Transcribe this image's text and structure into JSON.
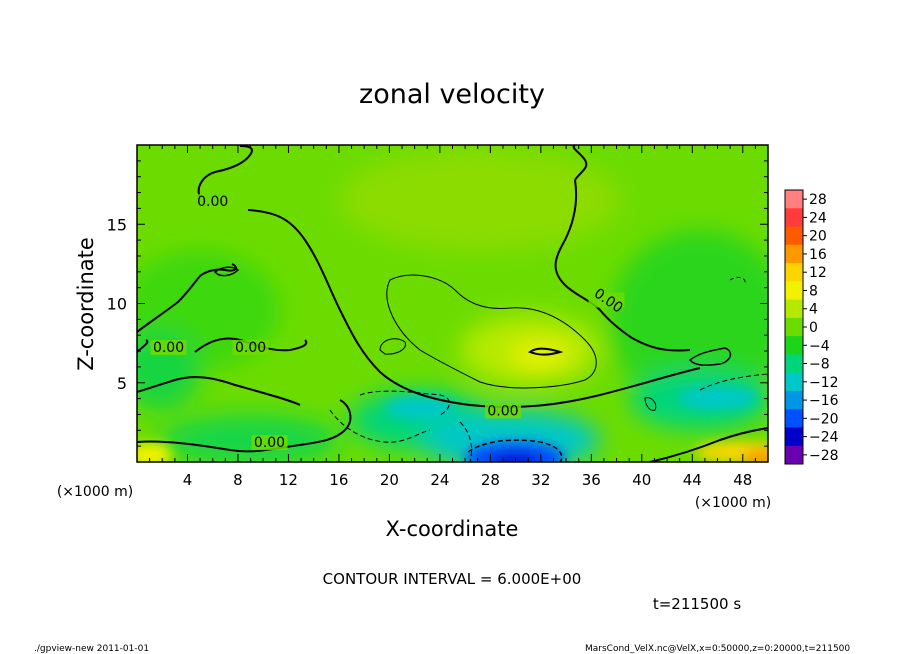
{
  "chart_data": {
    "type": "heatmap",
    "title": "zonal velocity",
    "xlabel": "X-coordinate",
    "ylabel": "Z-coordinate",
    "x_unit": "(×1000 m)",
    "y_unit": "(×1000 m)",
    "xlim": [
      0,
      50
    ],
    "ylim": [
      0,
      20
    ],
    "x_ticks": [
      4,
      8,
      12,
      16,
      20,
      24,
      28,
      32,
      36,
      40,
      44,
      48
    ],
    "y_ticks": [
      5,
      10,
      15
    ],
    "colorbar": {
      "labels": [
        "28",
        "24",
        "20",
        "16",
        "12",
        "8",
        "4",
        "0",
        "−4",
        "−8",
        "−12",
        "−16",
        "−20",
        "−24",
        "−28"
      ],
      "colors": [
        "#ff8080",
        "#ff3b3b",
        "#ff5a00",
        "#ff9900",
        "#ffd500",
        "#f2f200",
        "#b5ea00",
        "#6cdc00",
        "#1ad51a",
        "#00d57a",
        "#00c8c8",
        "#0096e6",
        "#0050ff",
        "#0000c8",
        "#6a00b0"
      ]
    },
    "contours": [
      {
        "label": "0.00",
        "value": 0
      },
      {
        "label": "0.00",
        "value": 0
      },
      {
        "label": "0.00",
        "value": 0
      },
      {
        "label": "0.00",
        "value": 0
      },
      {
        "label": "0.00",
        "value": 0
      },
      {
        "label": "0.00",
        "value": 0
      }
    ],
    "annotations": {
      "contour_interval": "CONTOUR INTERVAL = 6.000E+00",
      "time": "t=211500 s",
      "footer_left": "./gpview-new  2011-01-01",
      "footer_right": "MarsCond_VelX.nc@VelX,x=0:50000,z=0:20000,t=211500"
    },
    "grid": false,
    "legend": "right"
  }
}
